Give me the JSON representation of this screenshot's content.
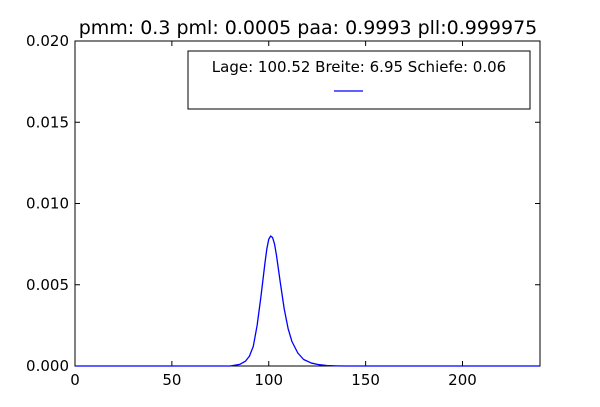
{
  "chart_data": {
    "type": "line",
    "title": "pmm: 0.3 pml: 0.0005 paa: 0.9993 pll:0.999975",
    "xlabel": "",
    "ylabel": "",
    "xlim": [
      0,
      240
    ],
    "ylim": [
      0,
      0.02
    ],
    "x_ticks": [
      "0",
      "50",
      "100",
      "150",
      "200"
    ],
    "x_tick_values": [
      0,
      50,
      100,
      150,
      200
    ],
    "y_ticks": [
      "0.000",
      "0.005",
      "0.010",
      "0.015",
      "0.020"
    ],
    "y_tick_values": [
      0,
      0.005,
      0.01,
      0.015,
      0.02
    ],
    "grid": false,
    "legend": {
      "placement": "top-right",
      "entries": [
        "Lage: 100.52 Breite: 6.95 Schiefe: 0.06"
      ]
    },
    "series": [
      {
        "color": "#0000ff",
        "x": [
          0,
          80,
          85,
          88,
          90,
          92,
          94,
          96,
          98,
          99,
          100,
          101,
          102,
          103,
          104,
          106,
          108,
          110,
          112,
          115,
          118,
          122,
          126,
          130,
          135,
          140,
          150,
          240
        ],
        "y": [
          0,
          0,
          0.0001,
          0.0003,
          0.0006,
          0.0012,
          0.0025,
          0.0043,
          0.0063,
          0.0072,
          0.0078,
          0.008,
          0.0079,
          0.0075,
          0.0068,
          0.0051,
          0.0035,
          0.0023,
          0.0015,
          0.0008,
          0.0004,
          0.00018,
          8e-05,
          3e-05,
          1e-05,
          0,
          0,
          0
        ]
      }
    ]
  }
}
